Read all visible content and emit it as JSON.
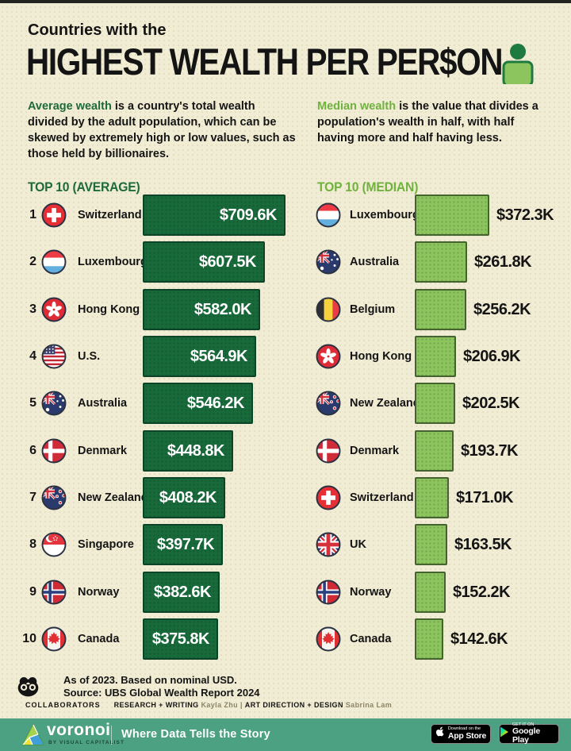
{
  "header": {
    "pretitle": "Countries with the",
    "title": "HIGHEST WEALTH PER PER$ON"
  },
  "intro": {
    "average_term": "Average wealth",
    "average_rest": " is a country's total wealth divided by the adult population, which can be skewed by extremely high or low values, such as those held by billionaires.",
    "median_term": "Median wealth",
    "median_rest": " is the value that divides a population's wealth in half, with half having more and half having less."
  },
  "colors": {
    "background_cream": "#f1ecd4",
    "average_bar_green": "#186a3b",
    "median_bar_green": "#8cc55e",
    "average_heading_green": "#1d6b3a",
    "median_heading_green": "#71b23f",
    "footer_teal": "#4ca183",
    "text_dark": "#141414"
  },
  "chart_data": [
    {
      "type": "bar",
      "title": "TOP 10 (AVERAGE)",
      "orientation": "horizontal",
      "value_unit": "USD thousands per adult",
      "xlim": [
        0,
        710
      ],
      "categories": [
        "Switzerland",
        "Luxembourg",
        "Hong Kong",
        "U.S.",
        "Australia",
        "Denmark",
        "New Zealand",
        "Singapore",
        "Norway",
        "Canada"
      ],
      "values": [
        709.6,
        607.5,
        582.0,
        564.9,
        546.2,
        448.8,
        408.2,
        397.7,
        382.6,
        375.8
      ],
      "value_labels": [
        "$709.6K",
        "$607.5K",
        "$582.0K",
        "$564.9K",
        "$546.2K",
        "$448.8K",
        "$408.2K",
        "$397.7K",
        "$382.6K",
        "$375.8K"
      ],
      "ranks": [
        "1",
        "2",
        "3",
        "4",
        "5",
        "6",
        "7",
        "8",
        "9",
        "10"
      ],
      "flags": [
        "ch",
        "lu",
        "hk",
        "us",
        "au",
        "dk",
        "nz",
        "sg",
        "no",
        "ca"
      ],
      "bar_color": "#186a3b",
      "value_label_position": "inside-bar"
    },
    {
      "type": "bar",
      "title": "TOP 10 (MEDIAN)",
      "orientation": "horizontal",
      "value_unit": "USD thousands per adult",
      "xlim": [
        0,
        710
      ],
      "categories": [
        "Luxembourg",
        "Australia",
        "Belgium",
        "Hong Kong",
        "New Zealand",
        "Denmark",
        "Switzerland",
        "UK",
        "Norway",
        "Canada"
      ],
      "values": [
        372.3,
        261.8,
        256.2,
        206.9,
        202.5,
        193.7,
        171.0,
        163.5,
        152.2,
        142.6
      ],
      "value_labels": [
        "$372.3K",
        "$261.8K",
        "$256.2K",
        "$206.9K",
        "$202.5K",
        "$193.7K",
        "$171.0K",
        "$163.5K",
        "$152.2K",
        "$142.6K"
      ],
      "ranks": [],
      "flags": [
        "lu",
        "au",
        "be",
        "hk",
        "nz",
        "dk",
        "ch",
        "uk",
        "no",
        "ca"
      ],
      "bar_color": "#8cc55e",
      "value_label_position": "right-of-bar"
    }
  ],
  "footnote": {
    "line1": "As of 2023. Based on nominal USD.",
    "line2": "Source: UBS Global Wealth Report 2024"
  },
  "collaborators": {
    "label": "COLLABORATORS",
    "research_label": "RESEARCH + WRITING",
    "research_name": "Kayla Zhu",
    "divider": "|",
    "art_label": "ART DIRECTION + DESIGN",
    "art_name": "Sabrina Lam"
  },
  "footer": {
    "brand": "voronoi",
    "brand_sub": "BY VISUAL CAPITALIST",
    "tagline": "Where Data Tells the Story",
    "appstore": {
      "line1": "Download on the",
      "line2": "App Store"
    },
    "googleplay": {
      "line1": "GET IT ON",
      "line2": "Google Play"
    }
  }
}
